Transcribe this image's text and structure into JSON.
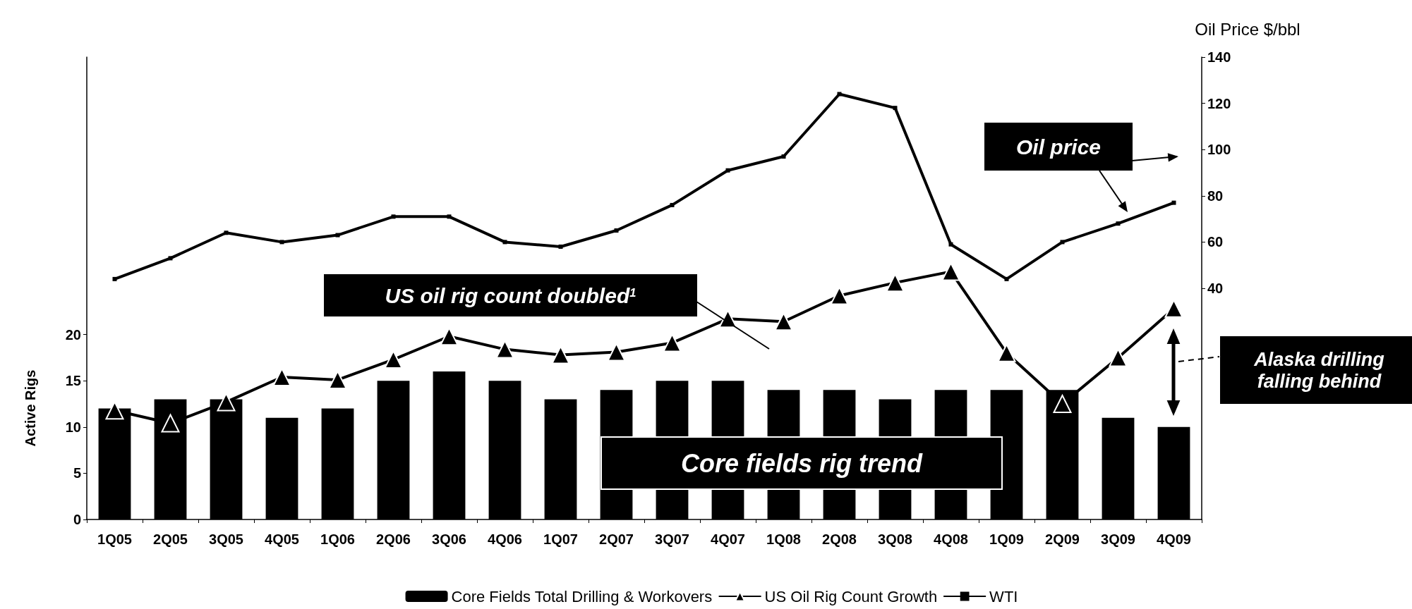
{
  "chart_data": {
    "type": "bar",
    "ylabel": "Active Rigs",
    "y2label": "Oil Price $/bbl",
    "categories": [
      "1Q05",
      "2Q05",
      "3Q05",
      "4Q05",
      "1Q06",
      "2Q06",
      "3Q06",
      "4Q06",
      "1Q07",
      "2Q07",
      "3Q07",
      "4Q07",
      "1Q08",
      "2Q08",
      "3Q08",
      "4Q08",
      "1Q09",
      "2Q09",
      "3Q09",
      "4Q09"
    ],
    "series": [
      {
        "name": "Core Fields Total Drilling & Workovers",
        "color": "#000000",
        "values": [
          12,
          13,
          13,
          11,
          12,
          15,
          16,
          15,
          13,
          14,
          15,
          15,
          14,
          14,
          13,
          14,
          14,
          14,
          11,
          10
        ]
      },
      {
        "name": "US Oil Rig Count Growth",
        "type": "line",
        "marker": "triangle",
        "color": "#000000",
        "values": [
          11.8,
          10.4,
          12.7,
          15.4,
          15.1,
          17.3,
          19.8,
          18.4,
          17.8,
          18.1,
          19.1,
          21.7,
          21.4,
          24.2,
          25.6,
          26.8,
          18.0,
          12.5,
          17.5,
          22.8
        ]
      },
      {
        "name": "WTI",
        "type": "line",
        "axis": "y2",
        "marker": "square",
        "color": "#000000",
        "values": [
          44,
          53,
          64,
          60,
          63,
          71,
          71,
          60,
          58,
          65,
          76,
          91,
          97,
          124,
          118,
          59,
          44,
          60,
          68,
          77
        ]
      }
    ],
    "ylim": [
      0,
      50
    ],
    "yticks": [
      0,
      5,
      10,
      15,
      20
    ],
    "y2lim": [
      -60,
      140
    ],
    "y2ticks": [
      40,
      60,
      80,
      100,
      120,
      140
    ],
    "legend": "bottom",
    "grid": false,
    "annotations": [
      "US oil rig count doubled$^{1}$",
      "Oil price",
      "Core fields rig trend",
      "Alaska drilling falling behind"
    ]
  }
}
